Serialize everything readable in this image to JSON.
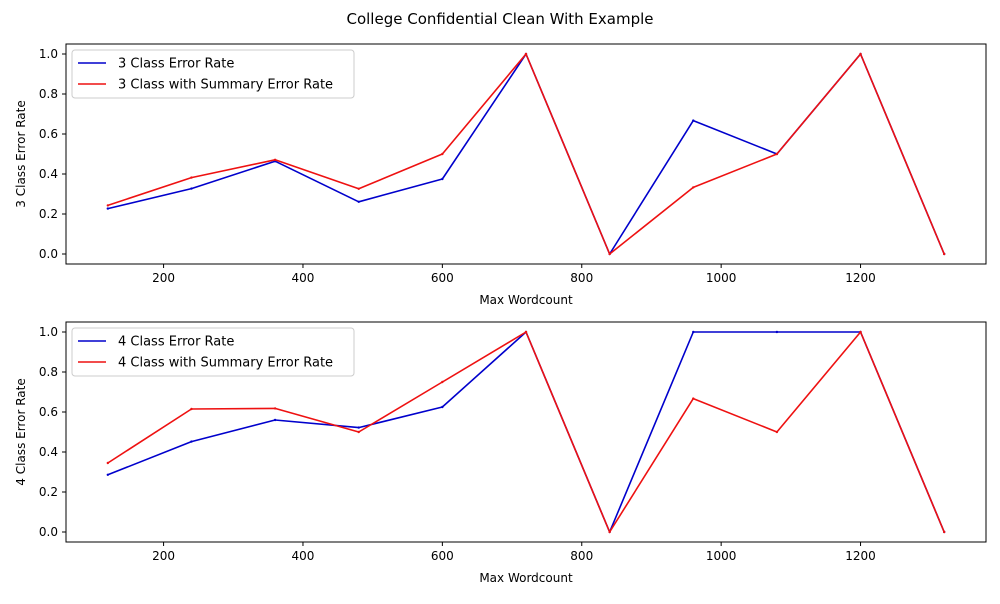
{
  "figure": {
    "title": "College Confidential Clean With Example"
  },
  "chart_data": [
    {
      "type": "line",
      "title": "",
      "xlabel": "Max Wordcount",
      "ylabel": "3 Class Error Rate",
      "xlim": [
        60,
        1380
      ],
      "ylim": [
        -0.05,
        1.05
      ],
      "xticks": [
        200,
        400,
        600,
        800,
        1000,
        1200
      ],
      "yticks": [
        0.0,
        0.2,
        0.4,
        0.6,
        0.8,
        1.0
      ],
      "grid": false,
      "legend_position": "upper-left",
      "x": [
        120,
        240,
        360,
        480,
        600,
        720,
        840,
        960,
        1080,
        1200,
        1320
      ],
      "series": [
        {
          "name": "3 Class Error Rate",
          "color": "#0000cc",
          "values": [
            0.227,
            0.327,
            0.464,
            0.261,
            0.375,
            1.0,
            0.0,
            0.667,
            0.5,
            1.0,
            0.0
          ]
        },
        {
          "name": "3 Class with Summary Error Rate",
          "color": "#ee1111",
          "values": [
            0.243,
            0.382,
            0.471,
            0.326,
            0.5,
            1.0,
            0.0,
            0.333,
            0.5,
            1.0,
            0.0
          ]
        }
      ]
    },
    {
      "type": "line",
      "title": "",
      "xlabel": "Max Wordcount",
      "ylabel": "4 Class Error Rate",
      "xlim": [
        60,
        1380
      ],
      "ylim": [
        -0.05,
        1.05
      ],
      "xticks": [
        200,
        400,
        600,
        800,
        1000,
        1200
      ],
      "yticks": [
        0.0,
        0.2,
        0.4,
        0.6,
        0.8,
        1.0
      ],
      "grid": false,
      "legend_position": "upper-left",
      "x": [
        120,
        240,
        360,
        480,
        600,
        720,
        840,
        960,
        1080,
        1200,
        1320
      ],
      "series": [
        {
          "name": "4 Class Error Rate",
          "color": "#0000cc",
          "values": [
            0.286,
            0.452,
            0.56,
            0.522,
            0.625,
            1.0,
            0.0,
            1.0,
            1.0,
            1.0,
            0.0
          ]
        },
        {
          "name": "4 Class with Summary Error Rate",
          "color": "#ee1111",
          "values": [
            0.345,
            0.615,
            0.618,
            0.5,
            0.75,
            1.0,
            0.0,
            0.667,
            0.5,
            1.0,
            0.0
          ]
        }
      ]
    }
  ]
}
